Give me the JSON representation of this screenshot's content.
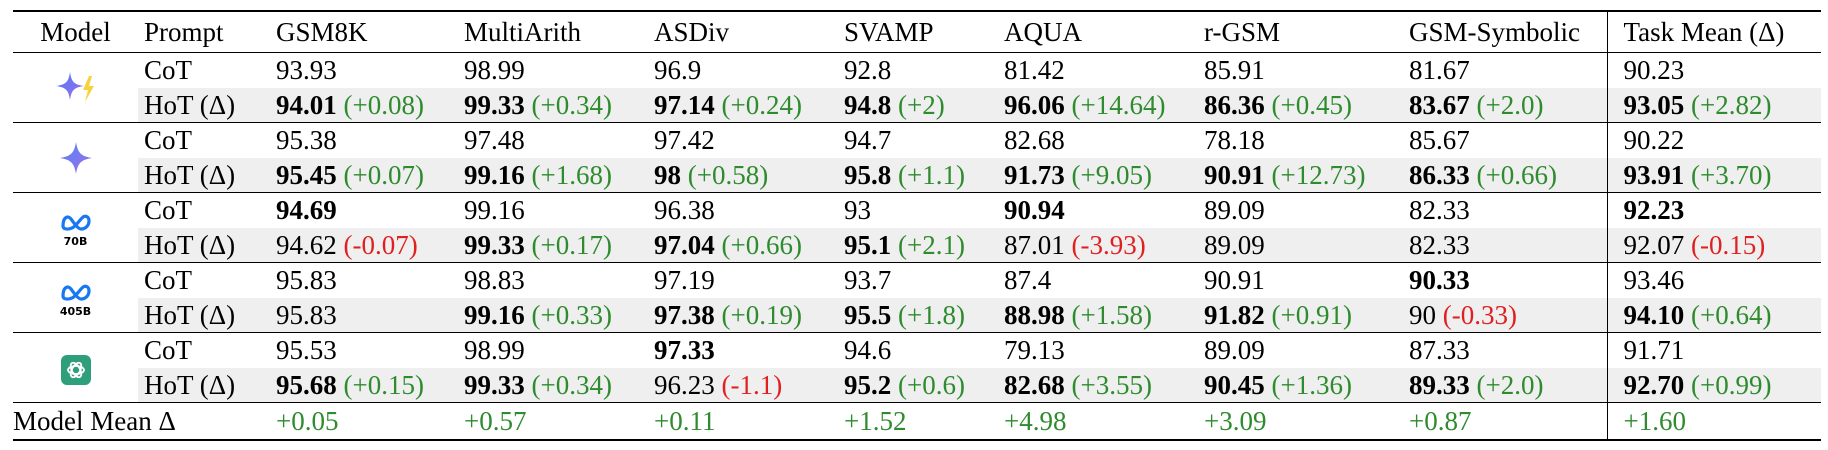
{
  "headers": [
    "Model",
    "Prompt",
    "GSM8K",
    "MultiArith",
    "ASDiv",
    "SVAMP",
    "AQUA",
    "r-GSM",
    "GSM-Symbolic",
    "Task Mean (Δ)"
  ],
  "models": [
    {
      "logo": "gemini-flash-icon",
      "logo_text": "",
      "rows": [
        {
          "prompt": "CoT",
          "cells": [
            {
              "v": "93.93",
              "b": false,
              "d": ""
            },
            {
              "v": "98.99",
              "b": false,
              "d": ""
            },
            {
              "v": "96.9",
              "b": false,
              "d": ""
            },
            {
              "v": "92.8",
              "b": false,
              "d": ""
            },
            {
              "v": "81.42",
              "b": false,
              "d": ""
            },
            {
              "v": "85.91",
              "b": false,
              "d": ""
            },
            {
              "v": "81.67",
              "b": false,
              "d": ""
            },
            {
              "v": "90.23",
              "b": false,
              "d": ""
            }
          ]
        },
        {
          "prompt": "HoT (Δ)",
          "cells": [
            {
              "v": "94.01",
              "b": true,
              "d": "(+0.08)"
            },
            {
              "v": "99.33",
              "b": true,
              "d": "(+0.34)"
            },
            {
              "v": "97.14",
              "b": true,
              "d": "(+0.24)"
            },
            {
              "v": "94.8",
              "b": true,
              "d": "(+2)"
            },
            {
              "v": "96.06",
              "b": true,
              "d": "(+14.64)"
            },
            {
              "v": "86.36",
              "b": true,
              "d": "(+0.45)"
            },
            {
              "v": "83.67",
              "b": true,
              "d": "(+2.0)"
            },
            {
              "v": "93.05",
              "b": true,
              "d": "(+2.82)"
            }
          ]
        }
      ]
    },
    {
      "logo": "gemini-icon",
      "logo_text": "",
      "rows": [
        {
          "prompt": "CoT",
          "cells": [
            {
              "v": "95.38",
              "b": false,
              "d": ""
            },
            {
              "v": "97.48",
              "b": false,
              "d": ""
            },
            {
              "v": "97.42",
              "b": false,
              "d": ""
            },
            {
              "v": "94.7",
              "b": false,
              "d": ""
            },
            {
              "v": "82.68",
              "b": false,
              "d": ""
            },
            {
              "v": "78.18",
              "b": false,
              "d": ""
            },
            {
              "v": "85.67",
              "b": false,
              "d": ""
            },
            {
              "v": "90.22",
              "b": false,
              "d": ""
            }
          ]
        },
        {
          "prompt": "HoT (Δ)",
          "cells": [
            {
              "v": "95.45",
              "b": true,
              "d": "(+0.07)"
            },
            {
              "v": "99.16",
              "b": true,
              "d": "(+1.68)"
            },
            {
              "v": "98",
              "b": true,
              "d": "(+0.58)"
            },
            {
              "v": "95.8",
              "b": true,
              "d": "(+1.1)"
            },
            {
              "v": "91.73",
              "b": true,
              "d": "(+9.05)"
            },
            {
              "v": "90.91",
              "b": true,
              "d": "(+12.73)"
            },
            {
              "v": "86.33",
              "b": true,
              "d": "(+0.66)"
            },
            {
              "v": "93.91",
              "b": true,
              "d": "(+3.70)"
            }
          ]
        }
      ]
    },
    {
      "logo": "meta-icon",
      "logo_text": "70B",
      "rows": [
        {
          "prompt": "CoT",
          "cells": [
            {
              "v": "94.69",
              "b": true,
              "d": ""
            },
            {
              "v": "99.16",
              "b": false,
              "d": ""
            },
            {
              "v": "96.38",
              "b": false,
              "d": ""
            },
            {
              "v": "93",
              "b": false,
              "d": ""
            },
            {
              "v": "90.94",
              "b": true,
              "d": ""
            },
            {
              "v": "89.09",
              "b": false,
              "d": ""
            },
            {
              "v": "82.33",
              "b": false,
              "d": ""
            },
            {
              "v": "92.23",
              "b": true,
              "d": ""
            }
          ]
        },
        {
          "prompt": "HoT (Δ)",
          "cells": [
            {
              "v": "94.62",
              "b": false,
              "d": "(-0.07)"
            },
            {
              "v": "99.33",
              "b": true,
              "d": "(+0.17)"
            },
            {
              "v": "97.04",
              "b": true,
              "d": "(+0.66)"
            },
            {
              "v": "95.1",
              "b": true,
              "d": "(+2.1)"
            },
            {
              "v": "87.01",
              "b": false,
              "d": "(-3.93)"
            },
            {
              "v": "89.09",
              "b": false,
              "d": ""
            },
            {
              "v": "82.33",
              "b": false,
              "d": ""
            },
            {
              "v": "92.07",
              "b": false,
              "d": "(-0.15)"
            }
          ]
        }
      ]
    },
    {
      "logo": "meta-icon",
      "logo_text": "405B",
      "rows": [
        {
          "prompt": "CoT",
          "cells": [
            {
              "v": "95.83",
              "b": false,
              "d": ""
            },
            {
              "v": "98.83",
              "b": false,
              "d": ""
            },
            {
              "v": "97.19",
              "b": false,
              "d": ""
            },
            {
              "v": "93.7",
              "b": false,
              "d": ""
            },
            {
              "v": "87.4",
              "b": false,
              "d": ""
            },
            {
              "v": "90.91",
              "b": false,
              "d": ""
            },
            {
              "v": "90.33",
              "b": true,
              "d": ""
            },
            {
              "v": "93.46",
              "b": false,
              "d": ""
            }
          ]
        },
        {
          "prompt": "HoT (Δ)",
          "cells": [
            {
              "v": "95.83",
              "b": false,
              "d": ""
            },
            {
              "v": "99.16",
              "b": true,
              "d": "(+0.33)"
            },
            {
              "v": "97.38",
              "b": true,
              "d": "(+0.19)"
            },
            {
              "v": "95.5",
              "b": true,
              "d": "(+1.8)"
            },
            {
              "v": "88.98",
              "b": true,
              "d": "(+1.58)"
            },
            {
              "v": "91.82",
              "b": true,
              "d": "(+0.91)"
            },
            {
              "v": "90",
              "b": false,
              "d": "(-0.33)"
            },
            {
              "v": "94.10",
              "b": true,
              "d": "(+0.64)"
            }
          ]
        }
      ]
    },
    {
      "logo": "openai-icon",
      "logo_text": "",
      "rows": [
        {
          "prompt": "CoT",
          "cells": [
            {
              "v": "95.53",
              "b": false,
              "d": ""
            },
            {
              "v": "98.99",
              "b": false,
              "d": ""
            },
            {
              "v": "97.33",
              "b": true,
              "d": ""
            },
            {
              "v": "94.6",
              "b": false,
              "d": ""
            },
            {
              "v": "79.13",
              "b": false,
              "d": ""
            },
            {
              "v": "89.09",
              "b": false,
              "d": ""
            },
            {
              "v": "87.33",
              "b": false,
              "d": ""
            },
            {
              "v": "91.71",
              "b": false,
              "d": ""
            }
          ]
        },
        {
          "prompt": "HoT (Δ)",
          "cells": [
            {
              "v": "95.68",
              "b": true,
              "d": "(+0.15)"
            },
            {
              "v": "99.33",
              "b": true,
              "d": "(+0.34)"
            },
            {
              "v": "96.23",
              "b": false,
              "d": "(-1.1)"
            },
            {
              "v": "95.2",
              "b": true,
              "d": "(+0.6)"
            },
            {
              "v": "82.68",
              "b": true,
              "d": "(+3.55)"
            },
            {
              "v": "90.45",
              "b": true,
              "d": "(+1.36)"
            },
            {
              "v": "89.33",
              "b": true,
              "d": "(+2.0)"
            },
            {
              "v": "92.70",
              "b": true,
              "d": "(+0.99)"
            }
          ]
        }
      ]
    }
  ],
  "mean_row": {
    "label": "Model Mean Δ",
    "values": [
      "+0.05",
      "+0.57",
      "+0.11",
      "+1.52",
      "+4.98",
      "+3.09",
      "+0.87",
      "+1.60"
    ]
  },
  "colors": {
    "positive": "#2e8b2e",
    "negative": "#e02020",
    "row_shade": "#efefef",
    "openai_green": "#2f9e7a"
  }
}
